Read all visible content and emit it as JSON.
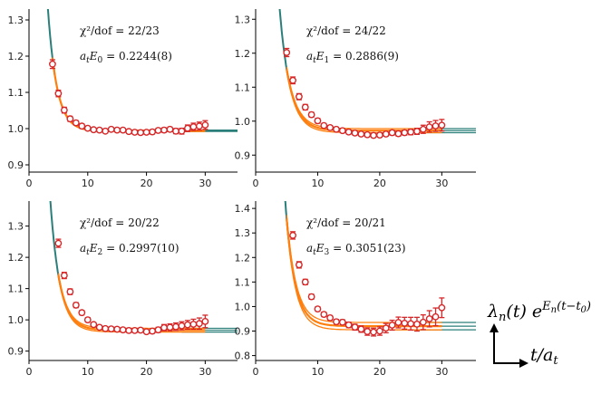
{
  "chart_data": [
    {
      "type": "scatter",
      "xlim": [
        0,
        35.5
      ],
      "ylim": [
        0.88,
        1.33
      ],
      "xticks": [
        "0",
        "10",
        "20",
        "30"
      ],
      "yticks": [
        "0.9",
        "1.0",
        "1.1",
        "1.2",
        "1.3"
      ],
      "chi2": "χ²/dof = 22/23",
      "energy": "a_t E_0 = 0.2244(8)",
      "asymptote": 0.994,
      "band": [
        0.992,
        0.996
      ],
      "curve_A": 2.6,
      "curve_tau": 1.5,
      "fit_range": [
        4,
        30
      ],
      "tail_range": [
        3,
        35.5
      ],
      "x": [
        4,
        5,
        6,
        7,
        8,
        9,
        10,
        11,
        12,
        13,
        14,
        15,
        16,
        17,
        18,
        19,
        20,
        21,
        22,
        23,
        24,
        25,
        26,
        27,
        28,
        29,
        30
      ],
      "y": [
        1.178,
        1.097,
        1.051,
        1.027,
        1.016,
        1.007,
        1.001,
        0.997,
        0.996,
        0.993,
        0.998,
        0.996,
        0.996,
        0.992,
        0.99,
        0.989,
        0.99,
        0.991,
        0.995,
        0.996,
        0.998,
        0.993,
        0.993,
        1.001,
        1.005,
        1.007,
        1.01
      ],
      "err": [
        0.012,
        0.009,
        0.008,
        0.007,
        0.006,
        0.006,
        0.005,
        0.005,
        0.005,
        0.005,
        0.005,
        0.005,
        0.005,
        0.005,
        0.005,
        0.005,
        0.005,
        0.006,
        0.006,
        0.006,
        0.006,
        0.007,
        0.008,
        0.009,
        0.01,
        0.011,
        0.012
      ]
    },
    {
      "type": "scatter",
      "xlim": [
        0,
        35.5
      ],
      "ylim": [
        0.85,
        1.33
      ],
      "xticks": [
        "0",
        "10",
        "20",
        "30"
      ],
      "yticks": [
        "0.9",
        "1.0",
        "1.1",
        "1.2",
        "1.3"
      ],
      "chi2": "χ²/dof = 24/22",
      "energy": "a_t E_1 = 0.2886(9)",
      "asymptote": 0.972,
      "band": [
        0.966,
        0.978
      ],
      "curve_A": 3.0,
      "curve_tau": 1.65,
      "fit_range": [
        5,
        30
      ],
      "tail_range": [
        3.5,
        35.5
      ],
      "x": [
        5,
        6,
        7,
        8,
        9,
        10,
        11,
        12,
        13,
        14,
        15,
        16,
        17,
        18,
        19,
        20,
        21,
        22,
        23,
        24,
        25,
        26,
        27,
        28,
        29,
        30
      ],
      "y": [
        1.202,
        1.12,
        1.072,
        1.041,
        1.019,
        1.001,
        0.987,
        0.981,
        0.976,
        0.972,
        0.968,
        0.965,
        0.962,
        0.96,
        0.958,
        0.959,
        0.962,
        0.966,
        0.963,
        0.966,
        0.968,
        0.97,
        0.976,
        0.983,
        0.986,
        0.988
      ],
      "err": [
        0.012,
        0.01,
        0.009,
        0.008,
        0.007,
        0.007,
        0.006,
        0.006,
        0.006,
        0.006,
        0.006,
        0.006,
        0.006,
        0.006,
        0.006,
        0.006,
        0.006,
        0.007,
        0.007,
        0.007,
        0.008,
        0.009,
        0.012,
        0.015,
        0.016,
        0.017
      ]
    },
    {
      "type": "scatter",
      "xlim": [
        0,
        35.5
      ],
      "ylim": [
        0.87,
        1.38
      ],
      "xticks": [
        "0",
        "10",
        "20",
        "30"
      ],
      "yticks": [
        "0.9",
        "1.0",
        "1.1",
        "1.2",
        "1.3"
      ],
      "chi2": "χ²/dof = 20/22",
      "energy": "a_t E_2 = 0.2997(10)",
      "asymptote": 0.967,
      "band": [
        0.961,
        0.973
      ],
      "curve_A": 3.0,
      "curve_tau": 1.6,
      "fit_range": [
        5,
        30
      ],
      "tail_range": [
        3.5,
        35.5
      ],
      "x": [
        5,
        6,
        7,
        8,
        9,
        10,
        11,
        12,
        13,
        14,
        15,
        16,
        17,
        18,
        19,
        20,
        21,
        22,
        23,
        24,
        25,
        26,
        27,
        28,
        29,
        30
      ],
      "y": [
        1.245,
        1.142,
        1.09,
        1.047,
        1.023,
        1.0,
        0.985,
        0.976,
        0.972,
        0.971,
        0.97,
        0.968,
        0.966,
        0.966,
        0.967,
        0.962,
        0.964,
        0.968,
        0.975,
        0.976,
        0.978,
        0.981,
        0.984,
        0.986,
        0.988,
        0.995
      ],
      "err": [
        0.013,
        0.01,
        0.009,
        0.008,
        0.007,
        0.007,
        0.006,
        0.006,
        0.006,
        0.006,
        0.006,
        0.006,
        0.006,
        0.006,
        0.006,
        0.006,
        0.007,
        0.008,
        0.01,
        0.011,
        0.012,
        0.013,
        0.014,
        0.016,
        0.018,
        0.02
      ]
    },
    {
      "type": "scatter",
      "xlim": [
        0,
        35.5
      ],
      "ylim": [
        0.78,
        1.43
      ],
      "xticks": [
        "0",
        "10",
        "20",
        "30"
      ],
      "yticks": [
        "0.8",
        "0.9",
        "1.0",
        "1.1",
        "1.2",
        "1.3",
        "1.4"
      ],
      "chi2": "χ²/dof = 20/21",
      "energy": "a_t E_3 = 0.3051(23)",
      "asymptote": 0.92,
      "band": [
        0.905,
        0.935
      ],
      "curve_A": 6.5,
      "curve_tau": 1.5,
      "fit_range": [
        5,
        30
      ],
      "tail_range": [
        3.8,
        35.5
      ],
      "x": [
        6,
        7,
        8,
        9,
        10,
        11,
        12,
        13,
        14,
        15,
        16,
        17,
        18,
        19,
        20,
        21,
        22,
        23,
        24,
        25,
        26,
        27,
        28,
        29,
        30
      ],
      "y": [
        1.29,
        1.17,
        1.1,
        1.04,
        0.99,
        0.968,
        0.954,
        0.938,
        0.936,
        0.925,
        0.916,
        0.908,
        0.898,
        0.896,
        0.9,
        0.912,
        0.924,
        0.935,
        0.932,
        0.93,
        0.928,
        0.936,
        0.95,
        0.958,
        0.995
      ],
      "err": [
        0.015,
        0.013,
        0.011,
        0.01,
        0.009,
        0.009,
        0.009,
        0.009,
        0.01,
        0.011,
        0.012,
        0.013,
        0.015,
        0.016,
        0.017,
        0.019,
        0.02,
        0.022,
        0.024,
        0.026,
        0.028,
        0.03,
        0.033,
        0.036,
        0.04
      ]
    }
  ],
  "legend": {
    "ylabel": "λ_n(t) e^{E_n(t−t_0)}",
    "xlabel": "t/a_t"
  },
  "colors": {
    "curve": "#ff7f0e",
    "tail": "#2a7f7a",
    "marker": "#d62728",
    "axis": "#000000"
  }
}
